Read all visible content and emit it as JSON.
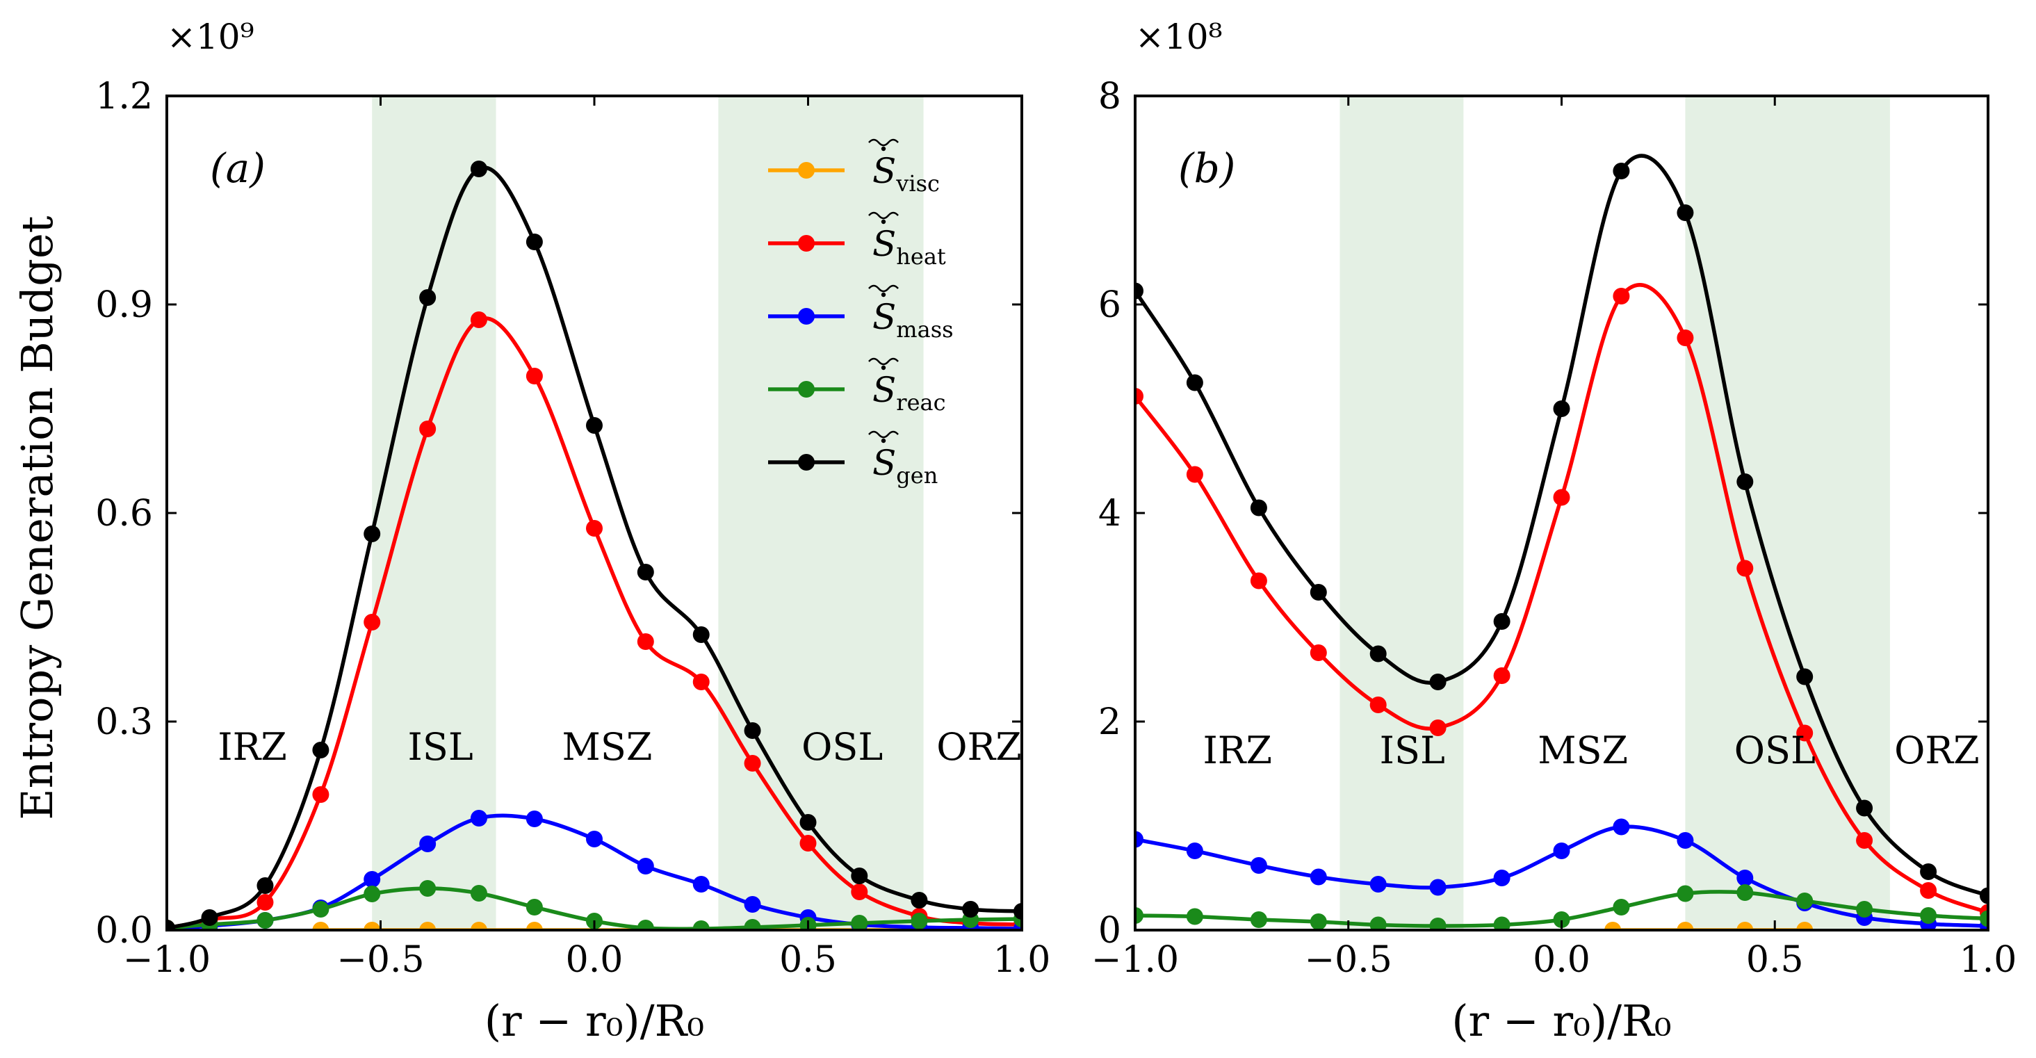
{
  "ylabel": "Entropy Generation Budget",
  "xlabel": "(r − r₀)/R₀",
  "legend": [
    {
      "symbol": "S",
      "sub": "visc",
      "color": "#FFA500"
    },
    {
      "symbol": "S",
      "sub": "heat",
      "color": "#FF0000"
    },
    {
      "symbol": "S",
      "sub": "mass",
      "color": "#0000FF"
    },
    {
      "symbol": "S",
      "sub": "reac",
      "color": "#1A8A1A"
    },
    {
      "symbol": "S",
      "sub": "gen",
      "color": "#000000"
    }
  ],
  "chart_data": [
    {
      "type": "line",
      "panel_label": "(a)",
      "multiplier": "×10⁹",
      "xlim": [
        -1.0,
        1.0
      ],
      "ylim": [
        0.0,
        1.2
      ],
      "xticks": [
        -1.0,
        -0.5,
        0.0,
        0.5,
        1.0
      ],
      "xtick_labels": [
        "−1.0",
        "−0.5",
        "0.0",
        "0.5",
        "1.0"
      ],
      "yticks": [
        0.0,
        0.3,
        0.6,
        0.9,
        1.2
      ],
      "ytick_labels": [
        "0.0",
        "0.3",
        "0.6",
        "0.9",
        "1.2"
      ],
      "shaded_bands": [
        [
          -0.52,
          -0.23
        ],
        [
          0.29,
          0.77
        ]
      ],
      "regions": [
        {
          "label": "IRZ",
          "x": -0.8,
          "y": 0.245
        },
        {
          "label": "ISL",
          "x": -0.36,
          "y": 0.245
        },
        {
          "label": "MSZ",
          "x": 0.03,
          "y": 0.245
        },
        {
          "label": "OSL",
          "x": 0.58,
          "y": 0.245
        },
        {
          "label": "ORZ",
          "x": 0.9,
          "y": 0.245
        }
      ],
      "series": [
        {
          "name": "S_visc",
          "color": "#FFA500",
          "x": [
            -0.64,
            -0.52,
            -0.39,
            -0.27,
            -0.14,
            0.37,
            0.5,
            0.62,
            0.76
          ],
          "y": [
            0.0,
            0.0,
            0.0,
            0.0,
            0.0,
            0.0,
            0.0,
            0.0,
            0.0
          ]
        },
        {
          "name": "S_heat",
          "color": "#FF0000",
          "x": [
            -1.0,
            -0.9,
            -0.77,
            -0.64,
            -0.52,
            -0.39,
            -0.27,
            -0.14,
            0.0,
            0.12,
            0.25,
            0.37,
            0.5,
            0.62,
            0.76,
            0.88,
            1.0
          ],
          "y": [
            0.003,
            0.015,
            0.04,
            0.195,
            0.443,
            0.721,
            0.878,
            0.797,
            0.578,
            0.415,
            0.357,
            0.24,
            0.125,
            0.055,
            0.02,
            0.01,
            0.008
          ]
        },
        {
          "name": "S_mass",
          "color": "#0000FF",
          "x": [
            -1.0,
            -0.9,
            -0.77,
            -0.64,
            -0.52,
            -0.39,
            -0.27,
            -0.14,
            0.0,
            0.12,
            0.25,
            0.37,
            0.5,
            0.62,
            0.76,
            0.88,
            1.0
          ],
          "y": [
            0.002,
            0.006,
            0.014,
            0.032,
            0.073,
            0.124,
            0.161,
            0.16,
            0.131,
            0.092,
            0.066,
            0.037,
            0.018,
            0.008,
            0.004,
            0.003,
            0.002
          ]
        },
        {
          "name": "S_reac",
          "color": "#1A8A1A",
          "x": [
            -1.0,
            -0.9,
            -0.77,
            -0.64,
            -0.52,
            -0.39,
            -0.27,
            -0.14,
            0.0,
            0.12,
            0.25,
            0.37,
            0.5,
            0.62,
            0.76,
            0.88,
            1.0
          ],
          "y": [
            0.003,
            0.008,
            0.014,
            0.03,
            0.052,
            0.06,
            0.053,
            0.033,
            0.013,
            0.003,
            0.002,
            0.004,
            0.007,
            0.01,
            0.013,
            0.015,
            0.016
          ]
        },
        {
          "name": "S_gen",
          "color": "#000000",
          "x": [
            -1.0,
            -0.9,
            -0.77,
            -0.64,
            -0.52,
            -0.39,
            -0.27,
            -0.14,
            0.0,
            0.12,
            0.25,
            0.37,
            0.5,
            0.62,
            0.76,
            0.88,
            1.0
          ],
          "y": [
            0.003,
            0.018,
            0.064,
            0.259,
            0.57,
            0.91,
            1.095,
            0.99,
            0.726,
            0.515,
            0.425,
            0.287,
            0.155,
            0.078,
            0.043,
            0.03,
            0.027
          ]
        }
      ]
    },
    {
      "type": "line",
      "panel_label": "(b)",
      "multiplier": "×10⁸",
      "xlim": [
        -1.0,
        1.0
      ],
      "ylim": [
        0.0,
        8.0
      ],
      "xticks": [
        -1.0,
        -0.5,
        0.0,
        0.5,
        1.0
      ],
      "xtick_labels": [
        "−1.0",
        "−0.5",
        "0.0",
        "0.5",
        "1.0"
      ],
      "yticks": [
        0,
        2,
        4,
        6,
        8
      ],
      "ytick_labels": [
        "0",
        "2",
        "4",
        "6",
        "8"
      ],
      "shaded_bands": [
        [
          -0.52,
          -0.23
        ],
        [
          0.29,
          0.77
        ]
      ],
      "regions": [
        {
          "label": "IRZ",
          "x": -0.76,
          "y": 1.6
        },
        {
          "label": "ISL",
          "x": -0.35,
          "y": 1.6
        },
        {
          "label": "MSZ",
          "x": 0.05,
          "y": 1.6
        },
        {
          "label": "OSL",
          "x": 0.5,
          "y": 1.6
        },
        {
          "label": "ORZ",
          "x": 0.88,
          "y": 1.6
        }
      ],
      "series": [
        {
          "name": "S_visc",
          "color": "#FFA500",
          "x": [
            0.12,
            0.29,
            0.43,
            0.57
          ],
          "y": [
            0.0,
            0.0,
            0.0,
            0.0
          ]
        },
        {
          "name": "S_heat",
          "color": "#FF0000",
          "x": [
            -1.0,
            -0.86,
            -0.71,
            -0.57,
            -0.43,
            -0.29,
            -0.14,
            0.0,
            0.14,
            0.29,
            0.43,
            0.57,
            0.71,
            0.86,
            1.0
          ],
          "y": [
            5.12,
            4.37,
            3.35,
            2.66,
            2.16,
            1.94,
            2.44,
            4.15,
            6.08,
            5.68,
            3.47,
            1.89,
            0.86,
            0.38,
            0.17
          ]
        },
        {
          "name": "S_mass",
          "color": "#0000FF",
          "x": [
            -1.0,
            -0.86,
            -0.71,
            -0.57,
            -0.43,
            -0.29,
            -0.14,
            0.0,
            0.14,
            0.29,
            0.43,
            0.57,
            0.71,
            0.86,
            1.0
          ],
          "y": [
            0.87,
            0.76,
            0.62,
            0.51,
            0.44,
            0.41,
            0.5,
            0.76,
            0.99,
            0.86,
            0.5,
            0.26,
            0.12,
            0.06,
            0.04
          ]
        },
        {
          "name": "S_reac",
          "color": "#1A8A1A",
          "x": [
            -1.0,
            -0.86,
            -0.71,
            -0.57,
            -0.43,
            -0.29,
            -0.14,
            0.0,
            0.14,
            0.29,
            0.43,
            0.57,
            0.71,
            0.86,
            1.0
          ],
          "y": [
            0.14,
            0.13,
            0.1,
            0.08,
            0.05,
            0.04,
            0.05,
            0.1,
            0.22,
            0.35,
            0.36,
            0.28,
            0.2,
            0.14,
            0.11
          ]
        },
        {
          "name": "S_gen",
          "color": "#000000",
          "x": [
            -1.0,
            -0.86,
            -0.71,
            -0.57,
            -0.43,
            -0.29,
            -0.14,
            0.0,
            0.14,
            0.29,
            0.43,
            0.57,
            0.71,
            0.86,
            1.0
          ],
          "y": [
            6.13,
            5.25,
            4.05,
            3.24,
            2.65,
            2.38,
            2.96,
            5.0,
            7.28,
            6.88,
            4.3,
            2.43,
            1.17,
            0.56,
            0.33
          ]
        }
      ]
    }
  ]
}
